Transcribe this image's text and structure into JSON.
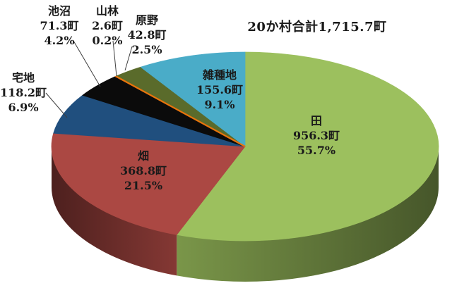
{
  "chart_data": {
    "type": "pie",
    "style": "3d",
    "title": "20か村合計1,715.7町",
    "unit": "町",
    "total_value": 1715.7,
    "direction": "clockwise",
    "start_angle_deg": 0,
    "legend": "none",
    "background": "#FFFFFF",
    "text_color": "#1A1A1A",
    "categories": [
      "田",
      "畑",
      "宅地",
      "池沼",
      "山林",
      "原野",
      "雑種地"
    ],
    "values": [
      956.3,
      368.8,
      118.2,
      71.3,
      2.6,
      42.8,
      155.6
    ],
    "percents": [
      55.7,
      21.5,
      6.9,
      4.2,
      0.2,
      2.5,
      9.1
    ],
    "items": [
      {
        "name": "田",
        "value": 956.3,
        "amount_label": "956.3町",
        "percent_label": "55.7%",
        "color": "#9CC05E",
        "label_placement": "inside"
      },
      {
        "name": "畑",
        "value": 368.8,
        "amount_label": "368.8町",
        "percent_label": "21.5%",
        "color": "#AB4843",
        "label_placement": "inside"
      },
      {
        "name": "宅地",
        "value": 118.2,
        "amount_label": "118.2町",
        "percent_label": "6.9%",
        "color": "#204F7E",
        "label_placement": "outside-left"
      },
      {
        "name": "池沼",
        "value": 71.3,
        "amount_label": "71.3町",
        "percent_label": "4.2%",
        "color": "#0B0B0B",
        "label_placement": "outside-top"
      },
      {
        "name": "山林",
        "value": 2.6,
        "amount_label": "2.6町",
        "percent_label": "0.2%",
        "color": "#E8740C",
        "label_placement": "outside-top"
      },
      {
        "name": "原野",
        "value": 42.8,
        "amount_label": "42.8町",
        "percent_label": "2.5%",
        "color": "#5A6B2B",
        "label_placement": "outside-top"
      },
      {
        "name": "雑種地",
        "value": 155.6,
        "amount_label": "155.6町",
        "percent_label": "9.1%",
        "color": "#4AACC8",
        "label_placement": "inside"
      }
    ]
  }
}
